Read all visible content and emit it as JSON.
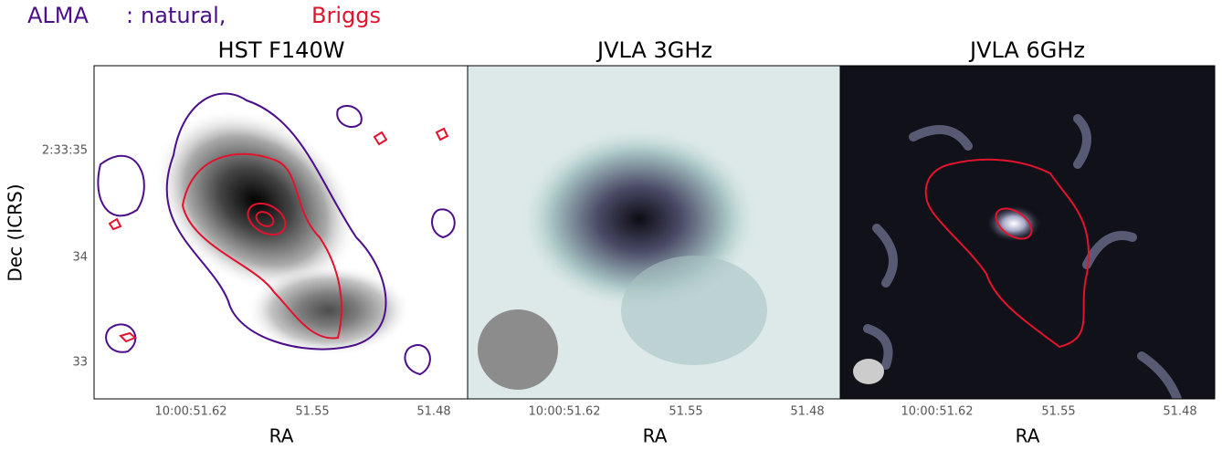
{
  "legend": {
    "alma": "ALMA",
    "separator": ":",
    "natural": "natural,",
    "briggs": "Briggs"
  },
  "y_label": "Dec (ICRS)",
  "y_ticks": [
    "2:33:35",
    "34",
    "33"
  ],
  "panels": [
    {
      "title": "HST F140W",
      "x_ticks": [
        "10:00:51.62",
        "51.55",
        "51.48"
      ],
      "x_label": "RA"
    },
    {
      "title": "JVLA 3GHz",
      "x_ticks": [
        "10:00:51.62",
        "51.55",
        "51.48"
      ],
      "x_label": "RA"
    },
    {
      "title": "JVLA 6GHz",
      "x_ticks": [
        "10:00:51.62",
        "51.55",
        "51.48"
      ],
      "x_label": "RA"
    }
  ]
}
